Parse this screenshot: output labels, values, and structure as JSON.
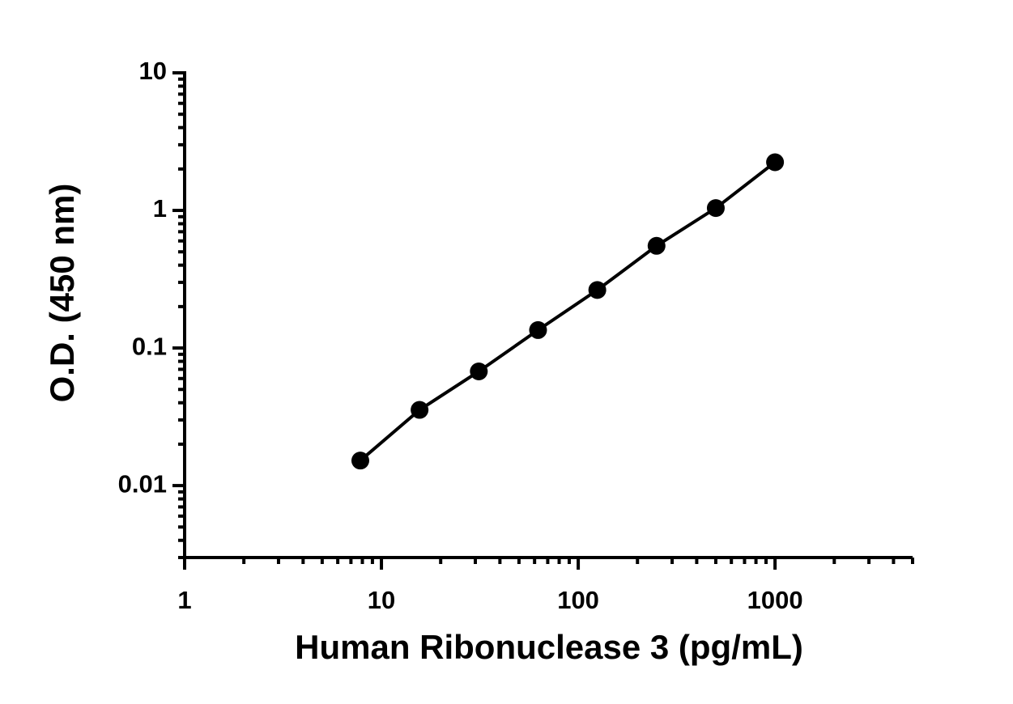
{
  "chart_data": {
    "type": "scatter-line",
    "x_label": "Human Ribonuclease 3 (pg/mL)",
    "y_label": "O.D. (450 nm)",
    "x": [
      7.8125,
      15.625,
      31.25,
      62.5,
      125,
      250,
      500,
      1000
    ],
    "values": [
      0.0152,
      0.0355,
      0.0676,
      0.135,
      0.264,
      0.553,
      1.04,
      2.24
    ],
    "color": "#000000",
    "xlim": [
      1,
      5000
    ],
    "ylim": [
      0.003,
      10
    ],
    "xticks": [
      1,
      10,
      100,
      1000
    ],
    "yticks": [
      0.01,
      0.1,
      1,
      10
    ],
    "xlog": true,
    "ylog": true,
    "minor_ticks": true
  }
}
